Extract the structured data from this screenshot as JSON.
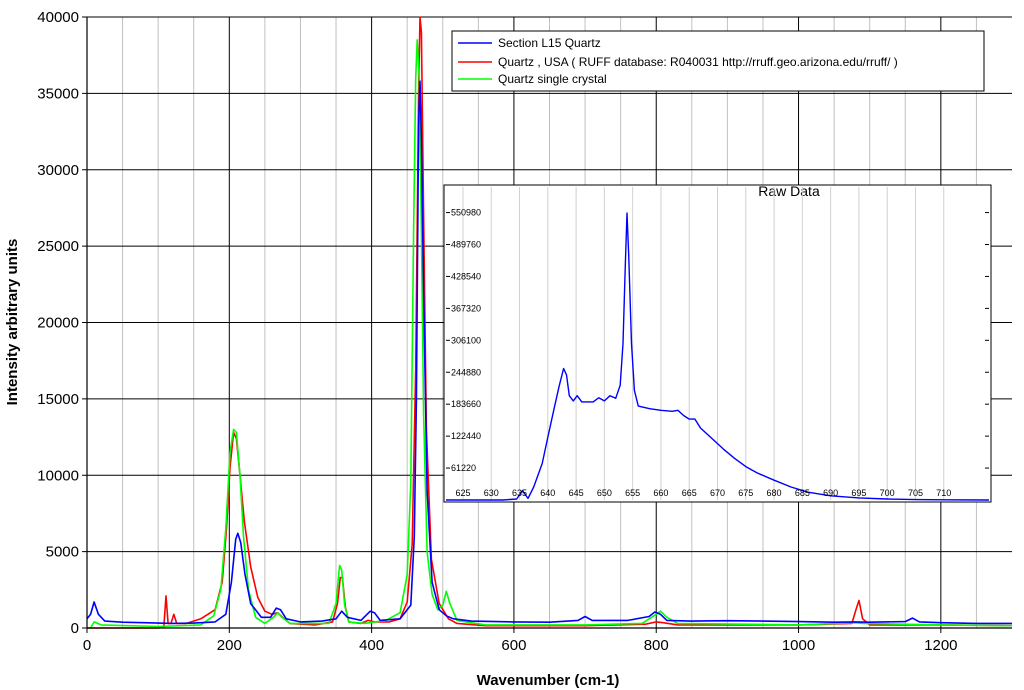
{
  "chart_data": [
    {
      "type": "line",
      "xlabel": "Wavenumber (cm-1)",
      "ylabel": "Intensity arbitrary units",
      "xlim": [
        0,
        1300
      ],
      "ylim": [
        0,
        40000
      ],
      "x_ticks": [
        "0",
        "200",
        "400",
        "600",
        "800",
        "1000",
        "1200"
      ],
      "y_ticks": [
        "0",
        "5000",
        "10000",
        "15000",
        "20000",
        "25000",
        "30000",
        "35000",
        "40000"
      ],
      "grid": true,
      "legend_position": "top-right",
      "series": [
        {
          "name": "Section L15 Quartz",
          "color": "#0000ff",
          "points": [
            [
              0,
              600
            ],
            [
              5,
              900
            ],
            [
              10,
              1700
            ],
            [
              16,
              900
            ],
            [
              25,
              450
            ],
            [
              50,
              380
            ],
            [
              80,
              350
            ],
            [
              120,
              300
            ],
            [
              150,
              320
            ],
            [
              180,
              400
            ],
            [
              195,
              900
            ],
            [
              203,
              3000
            ],
            [
              209,
              5800
            ],
            [
              212,
              6200
            ],
            [
              216,
              5600
            ],
            [
              222,
              3500
            ],
            [
              230,
              1600
            ],
            [
              245,
              700
            ],
            [
              258,
              700
            ],
            [
              266,
              1300
            ],
            [
              272,
              1200
            ],
            [
              280,
              600
            ],
            [
              300,
              400
            ],
            [
              330,
              450
            ],
            [
              350,
              600
            ],
            [
              358,
              1100
            ],
            [
              366,
              700
            ],
            [
              385,
              500
            ],
            [
              398,
              1100
            ],
            [
              404,
              1000
            ],
            [
              412,
              500
            ],
            [
              440,
              600
            ],
            [
              455,
              1500
            ],
            [
              460,
              6000
            ],
            [
              463,
              15000
            ],
            [
              466,
              33000
            ],
            [
              468,
              35800
            ],
            [
              470,
              32000
            ],
            [
              473,
              22000
            ],
            [
              478,
              9000
            ],
            [
              485,
              3000
            ],
            [
              495,
              1200
            ],
            [
              505,
              800
            ],
            [
              515,
              600
            ],
            [
              540,
              450
            ],
            [
              600,
              400
            ],
            [
              650,
              380
            ],
            [
              690,
              500
            ],
            [
              700,
              750
            ],
            [
              710,
              500
            ],
            [
              760,
              500
            ],
            [
              790,
              750
            ],
            [
              798,
              1050
            ],
            [
              806,
              900
            ],
            [
              815,
              500
            ],
            [
              850,
              450
            ],
            [
              900,
              480
            ],
            [
              950,
              450
            ],
            [
              1000,
              420
            ],
            [
              1050,
              380
            ],
            [
              1080,
              400
            ],
            [
              1100,
              380
            ],
            [
              1150,
              420
            ],
            [
              1160,
              650
            ],
            [
              1170,
              400
            ],
            [
              1200,
              350
            ],
            [
              1250,
              300
            ],
            [
              1300,
              300
            ]
          ]
        },
        {
          "name": "Quartz , USA ( RUFF database: R040031  http://rruff.geo.arizona.edu/rruff/ )",
          "color": "#ff0000",
          "points": [
            [
              0,
              0
            ],
            [
              100,
              0
            ],
            [
              108,
              50
            ],
            [
              111,
              2100
            ],
            [
              114,
              300
            ],
            [
              118,
              300
            ],
            [
              122,
              900
            ],
            [
              126,
              300
            ],
            [
              140,
              300
            ],
            [
              160,
              600
            ],
            [
              180,
              1200
            ],
            [
              190,
              3000
            ],
            [
              196,
              6500
            ],
            [
              201,
              10500
            ],
            [
              206,
              12800
            ],
            [
              210,
              12400
            ],
            [
              215,
              10000
            ],
            [
              221,
              7000
            ],
            [
              230,
              4000
            ],
            [
              240,
              2000
            ],
            [
              250,
              1100
            ],
            [
              260,
              900
            ],
            [
              268,
              1000
            ],
            [
              275,
              700
            ],
            [
              285,
              300
            ],
            [
              320,
              200
            ],
            [
              345,
              400
            ],
            [
              352,
              1600
            ],
            [
              356,
              3300
            ],
            [
              359,
              3300
            ],
            [
              363,
              1400
            ],
            [
              368,
              400
            ],
            [
              385,
              300
            ],
            [
              395,
              500
            ],
            [
              404,
              400
            ],
            [
              425,
              400
            ],
            [
              440,
              600
            ],
            [
              450,
              1700
            ],
            [
              457,
              5500
            ],
            [
              462,
              17000
            ],
            [
              466,
              35000
            ],
            [
              468,
              40000
            ],
            [
              470,
              39000
            ],
            [
              473,
              27000
            ],
            [
              477,
              13000
            ],
            [
              484,
              4500
            ],
            [
              495,
              1600
            ],
            [
              508,
              600
            ],
            [
              520,
              300
            ],
            [
              560,
              150
            ],
            [
              700,
              150
            ],
            [
              785,
              250
            ],
            [
              800,
              400
            ],
            [
              810,
              350
            ],
            [
              830,
              200
            ],
            [
              1000,
              200
            ],
            [
              1075,
              300
            ],
            [
              1081,
              1250
            ],
            [
              1085,
              1800
            ],
            [
              1090,
              600
            ],
            [
              1100,
              200
            ],
            [
              1200,
              200
            ],
            [
              1300,
              150
            ]
          ]
        },
        {
          "name": "Quartz single crystal",
          "color": "#00ff00",
          "points": [
            [
              0,
              0
            ],
            [
              5,
              0
            ],
            [
              10,
              400
            ],
            [
              20,
              200
            ],
            [
              100,
              100
            ],
            [
              160,
              200
            ],
            [
              178,
              800
            ],
            [
              188,
              2500
            ],
            [
              195,
              6500
            ],
            [
              201,
              11500
            ],
            [
              206,
              13000
            ],
            [
              210,
              12800
            ],
            [
              215,
              10000
            ],
            [
              220,
              6000
            ],
            [
              227,
              2500
            ],
            [
              237,
              700
            ],
            [
              250,
              300
            ],
            [
              262,
              700
            ],
            [
              268,
              1000
            ],
            [
              274,
              700
            ],
            [
              285,
              300
            ],
            [
              340,
              300
            ],
            [
              350,
              1600
            ],
            [
              355,
              4100
            ],
            [
              358,
              3800
            ],
            [
              362,
              1500
            ],
            [
              368,
              400
            ],
            [
              390,
              300
            ],
            [
              420,
              500
            ],
            [
              440,
              1000
            ],
            [
              450,
              3500
            ],
            [
              455,
              9500
            ],
            [
              459,
              26000
            ],
            [
              462,
              36000
            ],
            [
              464,
              38500
            ],
            [
              467,
              36000
            ],
            [
              470,
              26000
            ],
            [
              473,
              14000
            ],
            [
              478,
              5000
            ],
            [
              485,
              2200
            ],
            [
              493,
              1200
            ],
            [
              500,
              1500
            ],
            [
              505,
              2400
            ],
            [
              510,
              1600
            ],
            [
              520,
              500
            ],
            [
              560,
              200
            ],
            [
              700,
              200
            ],
            [
              780,
              300
            ],
            [
              800,
              900
            ],
            [
              806,
              1100
            ],
            [
              815,
              700
            ],
            [
              830,
              300
            ],
            [
              1000,
              200
            ],
            [
              1080,
              350
            ],
            [
              1090,
              300
            ],
            [
              1200,
              200
            ],
            [
              1300,
              150
            ]
          ]
        }
      ]
    },
    {
      "type": "line",
      "title": "Raw Data",
      "xlim": [
        622,
        718
      ],
      "ylim": [
        0,
        600000
      ],
      "x_ticks": [
        "625",
        "630",
        "635",
        "640",
        "645",
        "650",
        "655",
        "660",
        "665",
        "670",
        "675",
        "680",
        "685",
        "690",
        "695",
        "700",
        "705",
        "710"
      ],
      "y_ticks": [
        "61220",
        "122440",
        "183660",
        "244880",
        "306100",
        "367320",
        "428540",
        "489760",
        "550980"
      ],
      "series": [
        {
          "color": "#0000ff",
          "points": [
            [
              622,
              0
            ],
            [
              632,
              0
            ],
            [
              634.5,
              2000
            ],
            [
              635.5,
              18000
            ],
            [
              636.5,
              3000
            ],
            [
              637.5,
              25000
            ],
            [
              639,
              70000
            ],
            [
              640,
              120000
            ],
            [
              641,
              170000
            ],
            [
              642,
              218000
            ],
            [
              642.8,
              252000
            ],
            [
              643.3,
              240000
            ],
            [
              643.8,
              200000
            ],
            [
              644.5,
              190000
            ],
            [
              645.2,
              200000
            ],
            [
              646,
              188000
            ],
            [
              648,
              188000
            ],
            [
              649,
              196000
            ],
            [
              650,
              190000
            ],
            [
              651,
              200000
            ],
            [
              652,
              195000
            ],
            [
              652.8,
              220000
            ],
            [
              653.3,
              300000
            ],
            [
              653.7,
              450000
            ],
            [
              654,
              550000
            ],
            [
              654.3,
              470000
            ],
            [
              654.8,
              300000
            ],
            [
              655.3,
              210000
            ],
            [
              656,
              180000
            ],
            [
              658,
              175000
            ],
            [
              660,
              172000
            ],
            [
              662,
              170000
            ],
            [
              663,
              172000
            ],
            [
              664,
              162000
            ],
            [
              665,
              155000
            ],
            [
              666,
              155000
            ],
            [
              667,
              138000
            ],
            [
              669,
              118000
            ],
            [
              671,
              98000
            ],
            [
              673,
              80000
            ],
            [
              675,
              64000
            ],
            [
              677,
              52000
            ],
            [
              680,
              38000
            ],
            [
              683,
              25000
            ],
            [
              686,
              15000
            ],
            [
              690,
              8000
            ],
            [
              695,
              4000
            ],
            [
              700,
              2000
            ],
            [
              705,
              800
            ],
            [
              710,
              300
            ],
            [
              718,
              0
            ]
          ]
        }
      ]
    }
  ]
}
